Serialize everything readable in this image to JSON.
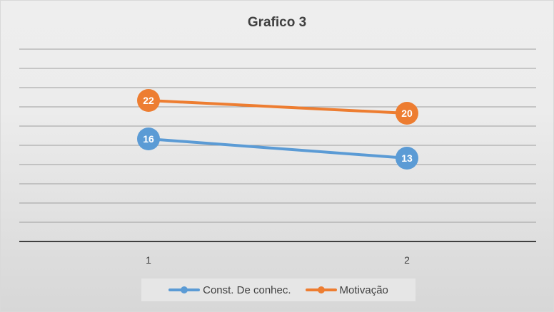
{
  "chart_data": {
    "type": "line",
    "title": "Grafico 3",
    "categories": [
      "1",
      "2"
    ],
    "series": [
      {
        "name": "Const. De conhec.",
        "values": [
          16,
          13
        ],
        "color": "#5b9bd5"
      },
      {
        "name": "Motivação",
        "values": [
          22,
          20
        ],
        "color": "#ed7d31"
      }
    ],
    "ylim": [
      0,
      30
    ],
    "y_gridlines": true,
    "y_axis_labels_shown": false,
    "data_labels": true,
    "legend_position": "bottom"
  }
}
